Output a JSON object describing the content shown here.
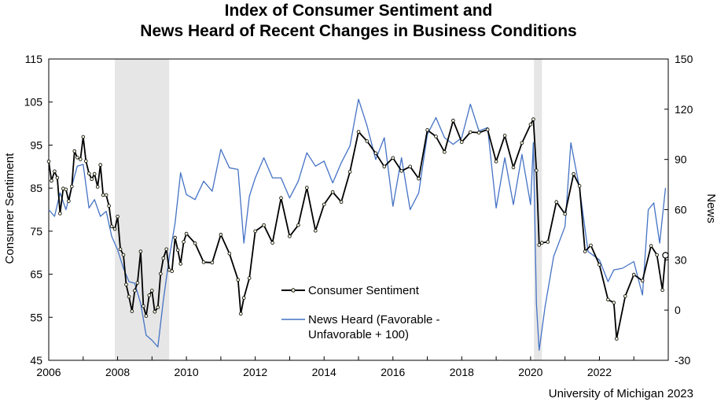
{
  "chart_data": {
    "type": "line",
    "title_line1": "Index of Consumer Sentiment and",
    "title_line2": "News Heard of Recent Changes in Business Conditions",
    "ylabel_left": "Consumer Sentiment",
    "ylabel_right": "News",
    "source": "University of Michigan 2023",
    "x_ticks": [
      "2006",
      "2008",
      "2010",
      "2012",
      "2014",
      "2016",
      "2018",
      "2020",
      "2022"
    ],
    "x_range": [
      2006,
      2024
    ],
    "y_left": {
      "range": [
        45,
        115
      ],
      "ticks": [
        45,
        55,
        65,
        75,
        85,
        95,
        105,
        115
      ]
    },
    "y_right": {
      "range": [
        -30,
        150
      ],
      "ticks": [
        -30,
        0,
        30,
        60,
        90,
        120,
        150
      ]
    },
    "recessions": [
      [
        2007.92,
        2009.5
      ],
      [
        2020.1,
        2020.33
      ]
    ],
    "legend": {
      "placement": "center-bottom"
    },
    "series": [
      {
        "name": "Consumer Sentiment",
        "axis": "left",
        "color": "#000000",
        "markers": true,
        "x": [
          2006.0,
          2006.08,
          2006.17,
          2006.25,
          2006.33,
          2006.42,
          2006.5,
          2006.58,
          2006.67,
          2006.75,
          2006.83,
          2006.92,
          2007.0,
          2007.08,
          2007.17,
          2007.25,
          2007.33,
          2007.42,
          2007.5,
          2007.58,
          2007.67,
          2007.75,
          2007.83,
          2007.92,
          2008.0,
          2008.08,
          2008.17,
          2008.25,
          2008.33,
          2008.42,
          2008.5,
          2008.58,
          2008.67,
          2008.75,
          2008.83,
          2008.92,
          2009.0,
          2009.08,
          2009.17,
          2009.25,
          2009.33,
          2009.42,
          2009.5,
          2009.58,
          2009.67,
          2009.75,
          2009.83,
          2009.92,
          2010.0,
          2010.25,
          2010.5,
          2010.75,
          2011.0,
          2011.25,
          2011.5,
          2011.58,
          2011.67,
          2011.83,
          2012.0,
          2012.25,
          2012.5,
          2012.75,
          2013.0,
          2013.25,
          2013.5,
          2013.75,
          2014.0,
          2014.25,
          2014.5,
          2014.75,
          2015.0,
          2015.25,
          2015.5,
          2015.75,
          2016.0,
          2016.25,
          2016.5,
          2016.75,
          2017.0,
          2017.25,
          2017.5,
          2017.75,
          2018.0,
          2018.25,
          2018.5,
          2018.75,
          2019.0,
          2019.25,
          2019.5,
          2019.75,
          2020.0,
          2020.08,
          2020.17,
          2020.25,
          2020.33,
          2020.5,
          2020.75,
          2021.0,
          2021.25,
          2021.42,
          2021.58,
          2021.75,
          2022.0,
          2022.25,
          2022.42,
          2022.5,
          2022.75,
          2023.0,
          2023.25,
          2023.5,
          2023.67,
          2023.83,
          2023.92
        ],
        "values": [
          91.2,
          86.7,
          88.9,
          87.4,
          79.1,
          84.9,
          84.7,
          82.0,
          85.4,
          93.6,
          92.1,
          91.7,
          96.9,
          91.3,
          88.4,
          87.1,
          88.3,
          85.3,
          90.4,
          83.4,
          83.4,
          80.9,
          76.1,
          75.5,
          78.4,
          70.8,
          69.5,
          62.6,
          59.8,
          56.4,
          61.2,
          63.0,
          70.3,
          57.6,
          55.3,
          60.1,
          61.2,
          56.3,
          57.3,
          65.1,
          68.7,
          70.8,
          66.0,
          65.7,
          73.5,
          70.6,
          67.4,
          72.5,
          74.4,
          72.2,
          67.8,
          67.7,
          74.2,
          69.8,
          63.7,
          55.8,
          59.5,
          64.1,
          75.0,
          76.4,
          72.3,
          82.7,
          73.8,
          76.4,
          85.1,
          75.1,
          81.2,
          84.1,
          81.8,
          88.8,
          98.1,
          95.9,
          93.1,
          90.0,
          92.0,
          89.0,
          90.0,
          87.2,
          98.5,
          97.0,
          93.4,
          100.7,
          95.7,
          98.0,
          97.9,
          98.6,
          91.2,
          97.2,
          89.8,
          95.5,
          99.8,
          101.0,
          89.1,
          71.8,
          72.3,
          72.5,
          81.8,
          79.0,
          88.3,
          85.5,
          70.3,
          71.7,
          67.2,
          59.1,
          58.4,
          50.0,
          59.9,
          64.9,
          63.5,
          71.6,
          69.5,
          61.3,
          69.4
        ]
      },
      {
        "name": "News Heard (Favorable - Unfavorable + 100)",
        "axis": "right",
        "color": "#4472c4",
        "markers": false,
        "x": [
          2006.0,
          2006.17,
          2006.33,
          2006.5,
          2006.67,
          2006.83,
          2007.0,
          2007.17,
          2007.33,
          2007.5,
          2007.67,
          2007.83,
          2008.0,
          2008.17,
          2008.33,
          2008.5,
          2008.67,
          2008.83,
          2009.0,
          2009.17,
          2009.33,
          2009.5,
          2009.67,
          2009.83,
          2010.0,
          2010.25,
          2010.5,
          2010.75,
          2011.0,
          2011.25,
          2011.5,
          2011.67,
          2011.83,
          2012.0,
          2012.25,
          2012.5,
          2012.75,
          2013.0,
          2013.25,
          2013.5,
          2013.75,
          2014.0,
          2014.25,
          2014.5,
          2014.75,
          2015.0,
          2015.25,
          2015.5,
          2015.75,
          2016.0,
          2016.25,
          2016.5,
          2016.75,
          2017.0,
          2017.25,
          2017.5,
          2017.75,
          2018.0,
          2018.25,
          2018.5,
          2018.75,
          2019.0,
          2019.25,
          2019.5,
          2019.75,
          2020.0,
          2020.08,
          2020.17,
          2020.25,
          2020.42,
          2020.67,
          2021.0,
          2021.17,
          2021.42,
          2021.67,
          2022.0,
          2022.25,
          2022.42,
          2022.67,
          2023.0,
          2023.25,
          2023.42,
          2023.58,
          2023.75,
          2023.92
        ],
        "values": [
          60,
          56,
          70,
          60,
          74,
          86,
          87,
          61,
          66,
          56,
          59,
          44,
          36,
          25,
          17,
          16,
          4,
          -15,
          -18,
          -22,
          6,
          31,
          52,
          82,
          69,
          66,
          77,
          71,
          96,
          85,
          84,
          40,
          68,
          79,
          91,
          79,
          79,
          67,
          77,
          94,
          86,
          89,
          76,
          88,
          98,
          126,
          110,
          90,
          103,
          62,
          91,
          60,
          70,
          105,
          115,
          103,
          99,
          103,
          123,
          107,
          109,
          61,
          91,
          63,
          93,
          63,
          100,
          4,
          -24,
          2,
          32,
          50,
          100,
          73,
          35,
          30,
          17,
          24,
          25,
          29,
          9,
          60,
          64,
          40,
          73
        ]
      }
    ]
  }
}
